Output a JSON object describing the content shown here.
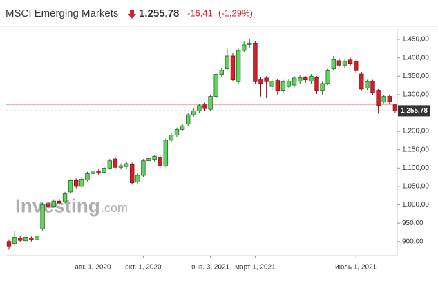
{
  "chart_data": {
    "type": "candlestick",
    "title": "MSCI Emerging Markets",
    "price": "1.255,78",
    "change": "-16,41",
    "change_percent": "(-1,29%)",
    "watermark": {
      "brand": "Investing",
      "suffix": ".com"
    },
    "up_color": "#5fd35f",
    "down_color": "#d0202a",
    "grid": false,
    "ylim": [
      862,
      1482
    ],
    "yticks": [
      {
        "value": 900,
        "label": "900,00"
      },
      {
        "value": 950,
        "label": "950,00"
      },
      {
        "value": 1000,
        "label": "1.000,00"
      },
      {
        "value": 1050,
        "label": "1.050,00"
      },
      {
        "value": 1100,
        "label": "1.100,00"
      },
      {
        "value": 1150,
        "label": "1.150,00"
      },
      {
        "value": 1200,
        "label": "1.200,00"
      },
      {
        "value": 1250,
        "label": "1.250,00"
      },
      {
        "value": 1300,
        "label": "1.300,00"
      },
      {
        "value": 1350,
        "label": "1.350,00"
      },
      {
        "value": 1400,
        "label": "1.400,00"
      },
      {
        "value": 1450,
        "label": "1.450,00"
      }
    ],
    "last_price": {
      "value": 1255.78,
      "label": "1 255,78"
    },
    "previous_close": 1272.19,
    "categories": [
      null,
      null,
      null,
      null,
      null,
      null,
      null,
      null,
      null,
      null,
      null,
      null,
      null,
      null,
      null,
      "авг. 1, 2020",
      null,
      null,
      null,
      null,
      null,
      null,
      null,
      null,
      "окт. 1, 2020",
      null,
      null,
      null,
      null,
      null,
      null,
      null,
      null,
      null,
      null,
      null,
      "янв. 3, 2021",
      null,
      null,
      null,
      null,
      null,
      null,
      null,
      "март 1, 2021",
      null,
      null,
      null,
      null,
      null,
      null,
      null,
      null,
      null,
      null,
      null,
      null,
      null,
      null,
      null,
      null,
      null,
      "июль 1, 2021",
      null,
      null,
      null,
      null,
      null,
      null,
      null
    ],
    "open": [
      900,
      895,
      910,
      902,
      910,
      905,
      935,
      1003,
      996,
      1010,
      1008,
      1035,
      1066,
      1050,
      1068,
      1085,
      1092,
      1088,
      1100,
      1125,
      1102,
      1104,
      1110,
      1062,
      1080,
      1120,
      1124,
      1130,
      1105,
      1176,
      1190,
      1205,
      1220,
      1245,
      1256,
      1272,
      1260,
      1295,
      1355,
      1370,
      1405,
      1335,
      1420,
      1436,
      1440,
      1340,
      1345,
      1322,
      1338,
      1310,
      1322,
      1326,
      1336,
      1346,
      1336,
      1346,
      1310,
      1330,
      1370,
      1392,
      1380,
      1394,
      1390,
      1356,
      1318,
      1336,
      1310,
      1280,
      1295,
      1272
    ],
    "high": [
      906,
      928,
      915,
      918,
      914,
      920,
      1005,
      1010,
      1015,
      1016,
      1035,
      1070,
      1072,
      1075,
      1090,
      1098,
      1096,
      1105,
      1125,
      1130,
      1112,
      1116,
      1115,
      1085,
      1125,
      1130,
      1136,
      1134,
      1180,
      1195,
      1210,
      1220,
      1250,
      1262,
      1275,
      1278,
      1300,
      1360,
      1372,
      1425,
      1412,
      1425,
      1445,
      1450,
      1445,
      1348,
      1350,
      1342,
      1342,
      1340,
      1342,
      1350,
      1352,
      1350,
      1356,
      1350,
      1335,
      1370,
      1405,
      1398,
      1395,
      1400,
      1394,
      1362,
      1340,
      1340,
      1315,
      1300,
      1300,
      1275
    ],
    "low": [
      878,
      890,
      898,
      897,
      900,
      902,
      930,
      990,
      992,
      1000,
      1004,
      1030,
      1045,
      1046,
      1064,
      1080,
      1082,
      1085,
      1096,
      1098,
      1096,
      1098,
      1055,
      1058,
      1076,
      1112,
      1118,
      1100,
      1102,
      1170,
      1185,
      1200,
      1215,
      1240,
      1250,
      1255,
      1255,
      1290,
      1348,
      1365,
      1335,
      1330,
      1415,
      1428,
      1330,
      1295,
      1290,
      1312,
      1300,
      1305,
      1316,
      1320,
      1330,
      1332,
      1330,
      1302,
      1300,
      1326,
      1365,
      1375,
      1372,
      1378,
      1360,
      1310,
      1312,
      1300,
      1248,
      1276,
      1275,
      1250
    ],
    "close": [
      888,
      912,
      903,
      912,
      905,
      915,
      1000,
      995,
      1010,
      1005,
      1030,
      1066,
      1050,
      1070,
      1085,
      1092,
      1086,
      1100,
      1120,
      1102,
      1106,
      1112,
      1060,
      1080,
      1120,
      1126,
      1132,
      1105,
      1176,
      1190,
      1205,
      1215,
      1245,
      1256,
      1270,
      1262,
      1295,
      1355,
      1366,
      1405,
      1340,
      1420,
      1435,
      1440,
      1335,
      1330,
      1335,
      1336,
      1310,
      1335,
      1336,
      1345,
      1346,
      1340,
      1350,
      1310,
      1330,
      1365,
      1395,
      1380,
      1390,
      1385,
      1365,
      1315,
      1335,
      1305,
      1270,
      1295,
      1280,
      1255.78
    ]
  }
}
